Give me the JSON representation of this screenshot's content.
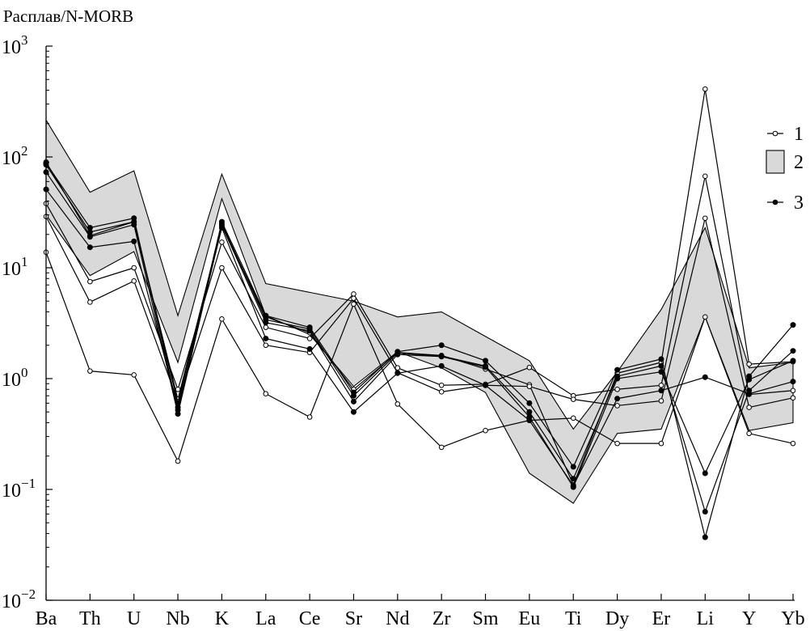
{
  "chart_data": {
    "type": "line",
    "title": "",
    "ylabel": "Расплав/N-MORB",
    "xlabel": "",
    "yscale": "log",
    "ylim": [
      0.01,
      1000
    ],
    "grid": false,
    "legend_position": "right",
    "y_ticks": [
      {
        "value": 0.01,
        "base": "10",
        "exp": "−2"
      },
      {
        "value": 0.1,
        "base": "10",
        "exp": "−1"
      },
      {
        "value": 1,
        "base": "10",
        "exp": "0"
      },
      {
        "value": 10,
        "base": "10",
        "exp": "1"
      },
      {
        "value": 100,
        "base": "10",
        "exp": "2"
      },
      {
        "value": 1000,
        "base": "10",
        "exp": "3"
      }
    ],
    "categories": [
      "Ba",
      "Th",
      "U",
      "Nb",
      "K",
      "La",
      "Ce",
      "Sr",
      "Nd",
      "Zr",
      "Sm",
      "Eu",
      "Ti",
      "Dy",
      "Er",
      "Li",
      "Y",
      "Yb"
    ],
    "legend": [
      {
        "key": "open",
        "label": "1"
      },
      {
        "key": "band",
        "label": "2"
      },
      {
        "key": "filled",
        "label": "3"
      }
    ],
    "band": {
      "upper": [
        215,
        48,
        75,
        3.7,
        70,
        7.2,
        6,
        5,
        3.6,
        4,
        2.4,
        1.45,
        0.35,
        1.15,
        4.2,
        23,
        1.25,
        1.4
      ],
      "lower": [
        30,
        8.5,
        14,
        1.4,
        42,
        3.7,
        2.5,
        0.85,
        1.75,
        1.25,
        0.75,
        0.14,
        0.075,
        0.32,
        0.35,
        3.6,
        0.34,
        0.4
      ]
    },
    "series": [
      {
        "style": "open",
        "values": [
          90,
          19.5,
          26,
          0.65,
          24,
          3.6,
          2.6,
          0.8,
          1.72,
          1.62,
          1.22,
          0.88,
          0.11,
          1.12,
          1.4,
          410,
          1.35,
          1.42
        ]
      },
      {
        "style": "open",
        "values": [
          38,
          7.5,
          10,
          0.8,
          17,
          2.9,
          2.3,
          5.8,
          1.25,
          0.87,
          0.89,
          1.26,
          0.7,
          0.8,
          0.87,
          67,
          0.72,
          0.78
        ]
      },
      {
        "style": "open",
        "values": [
          29,
          4.9,
          7.6,
          0.62,
          10,
          2.0,
          1.72,
          5.3,
          1.13,
          0.76,
          0.87,
          0.85,
          0.65,
          0.57,
          0.63,
          28,
          0.55,
          0.67
        ]
      },
      {
        "style": "open",
        "values": [
          13.8,
          1.17,
          1.08,
          0.18,
          3.45,
          0.73,
          0.45,
          4.7,
          0.59,
          0.24,
          0.34,
          0.42,
          0.44,
          0.26,
          0.26,
          3.6,
          0.32,
          0.26
        ]
      },
      {
        "style": "filled",
        "values": [
          88,
          23,
          28,
          0.52,
          26,
          3.7,
          2.9,
          0.75,
          1.75,
          2.0,
          1.45,
          0.6,
          0.16,
          1.2,
          1.5,
          0.037,
          1.05,
          3.05
        ]
      },
      {
        "style": "filled",
        "values": [
          85,
          21,
          26,
          0.6,
          25,
          3.4,
          2.8,
          0.7,
          1.7,
          1.6,
          1.3,
          0.5,
          0.125,
          1.05,
          1.3,
          0.063,
          0.78,
          1.78
        ]
      },
      {
        "style": "filled",
        "values": [
          73,
          19,
          24.5,
          0.48,
          24,
          3.2,
          2.7,
          0.62,
          1.65,
          1.58,
          1.27,
          0.45,
          0.105,
          1.0,
          1.15,
          0.14,
          0.98,
          1.45
        ]
      },
      {
        "style": "filled",
        "values": [
          51,
          15.3,
          17.3,
          0.55,
          23,
          2.3,
          1.85,
          0.5,
          1.12,
          1.3,
          0.87,
          0.42,
          0.108,
          0.66,
          0.78,
          1.03,
          0.73,
          0.94
        ]
      }
    ]
  }
}
